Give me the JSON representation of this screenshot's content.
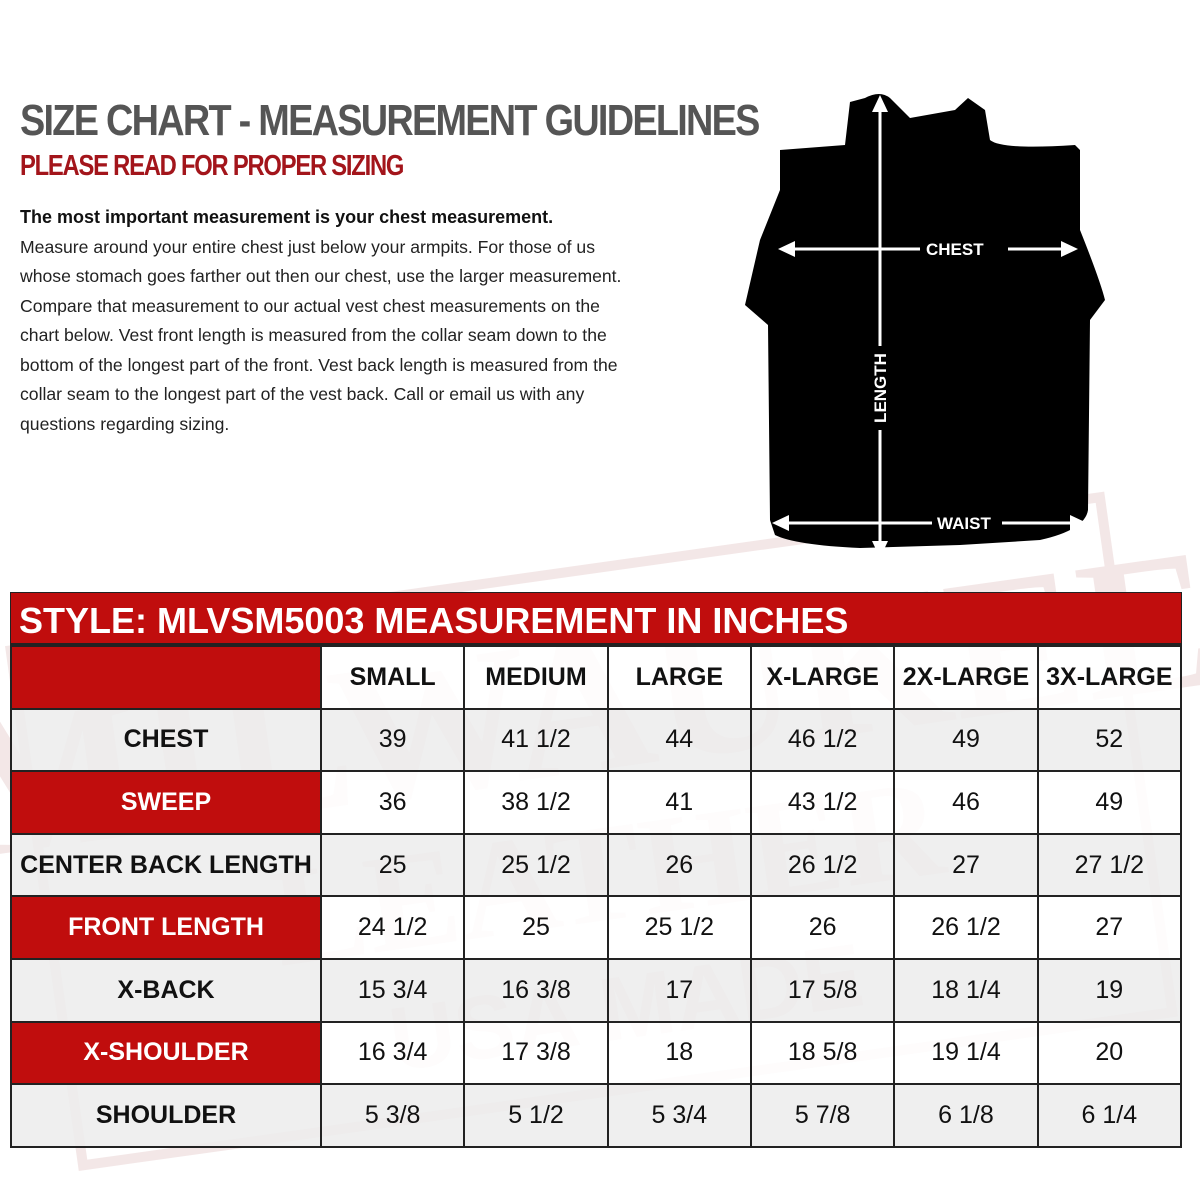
{
  "header": {
    "title": "SIZE CHART - MEASUREMENT GUIDELINES",
    "subtitle": "PLEASE READ FOR PROPER SIZING",
    "intro_bold": "The most important measurement is your chest measurement.",
    "intro_body": "Measure around your entire chest just below your armpits.  For those of us whose stomach goes farther out then our chest, use the larger measurement. Compare that measurement to our actual vest chest measurements on the chart below.  Vest front length is measured from the collar seam down to the bottom of the longest part of the front. Vest back length is measured from the collar seam to the longest part of the vest back.  Call or email us with any questions regarding sizing."
  },
  "diagram": {
    "chest": "CHEST",
    "length": "LENGTH",
    "waist": "WAIST"
  },
  "watermark": {
    "logo_text": "MILWAUKEE LEATHER USA MADE"
  },
  "colors": {
    "accent": "#c00d0d",
    "title": "#555555",
    "subtitle": "#a3151b"
  },
  "table": {
    "title": "STYLE: MLVSM5003 MEASUREMENT IN INCHES",
    "columns": [
      "SMALL",
      "MEDIUM",
      "LARGE",
      "X-LARGE",
      "2X-LARGE",
      "3X-LARGE"
    ],
    "rows": [
      {
        "label": "CHEST",
        "values": [
          "39",
          "41 1/2",
          "44",
          "46 1/2",
          "49",
          "52"
        ]
      },
      {
        "label": "SWEEP",
        "values": [
          "36",
          "38 1/2",
          "41",
          "43 1/2",
          "46",
          "49"
        ]
      },
      {
        "label": "CENTER BACK LENGTH",
        "values": [
          "25",
          "25 1/2",
          "26",
          "26 1/2",
          "27",
          "27 1/2"
        ]
      },
      {
        "label": "FRONT LENGTH",
        "values": [
          "24 1/2",
          "25",
          "25 1/2",
          "26",
          "26 1/2",
          "27"
        ]
      },
      {
        "label": "X-BACK",
        "values": [
          "15 3/4",
          "16 3/8",
          "17",
          "17 5/8",
          "18 1/4",
          "19"
        ]
      },
      {
        "label": "X-SHOULDER",
        "values": [
          "16 3/4",
          "17 3/8",
          "18",
          "18 5/8",
          "19 1/4",
          "20"
        ]
      },
      {
        "label": "SHOULDER",
        "values": [
          "5 3/8",
          "5 1/2",
          "5 3/4",
          "5 7/8",
          "6 1/8",
          "6 1/4"
        ]
      }
    ]
  }
}
